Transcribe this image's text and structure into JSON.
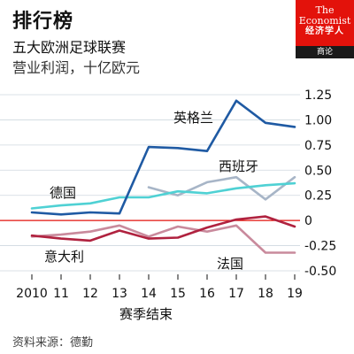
{
  "header": {
    "title": "排行榜",
    "subtitle": "五大欧洲足球联赛",
    "units": "营业利润，十亿欧元"
  },
  "logo": {
    "line1": "The",
    "line2": "Economist",
    "line3": "经济学人",
    "sub": "商论"
  },
  "source": "资料来源：德勤",
  "chart_data": {
    "type": "line",
    "x": [
      "2010",
      "11",
      "12",
      "13",
      "14",
      "15",
      "16",
      "17",
      "18",
      "19"
    ],
    "xlabel": "赛季结束",
    "ylabel": "",
    "ylim": [
      -0.5,
      1.25
    ],
    "yticks": [
      "1.25",
      "1.00",
      "0.75",
      "0.50",
      "0.25",
      "0",
      "-0.25",
      "-0.50"
    ],
    "ytick_values": [
      1.25,
      1.0,
      0.75,
      0.5,
      0.25,
      0,
      -0.25,
      -0.5
    ],
    "zero_line_color": "#e3120b",
    "grid": true,
    "series": [
      {
        "name": "英格兰",
        "color": "#1f5aa3",
        "values": [
          0.08,
          0.06,
          0.08,
          0.07,
          0.73,
          0.72,
          0.69,
          1.19,
          0.97,
          0.93
        ]
      },
      {
        "name": "德国",
        "color": "#4fd1d4",
        "values": [
          0.12,
          0.15,
          0.17,
          0.23,
          0.23,
          0.29,
          0.27,
          0.32,
          0.35,
          0.37
        ]
      },
      {
        "name": "西班牙",
        "color": "#a7b5c7",
        "values": [
          null,
          null,
          null,
          null,
          0.33,
          0.25,
          0.38,
          0.43,
          0.21,
          0.43
        ]
      },
      {
        "name": "意大利",
        "color": "#b0223f",
        "values": [
          -0.15,
          -0.18,
          -0.2,
          -0.1,
          -0.18,
          -0.17,
          -0.07,
          0.01,
          0.04,
          -0.06
        ]
      },
      {
        "name": "法国",
        "color": "#c98a9c",
        "values": [
          -0.16,
          -0.14,
          -0.11,
          -0.05,
          -0.16,
          -0.06,
          -0.11,
          -0.05,
          -0.32,
          -0.32
        ]
      }
    ]
  }
}
